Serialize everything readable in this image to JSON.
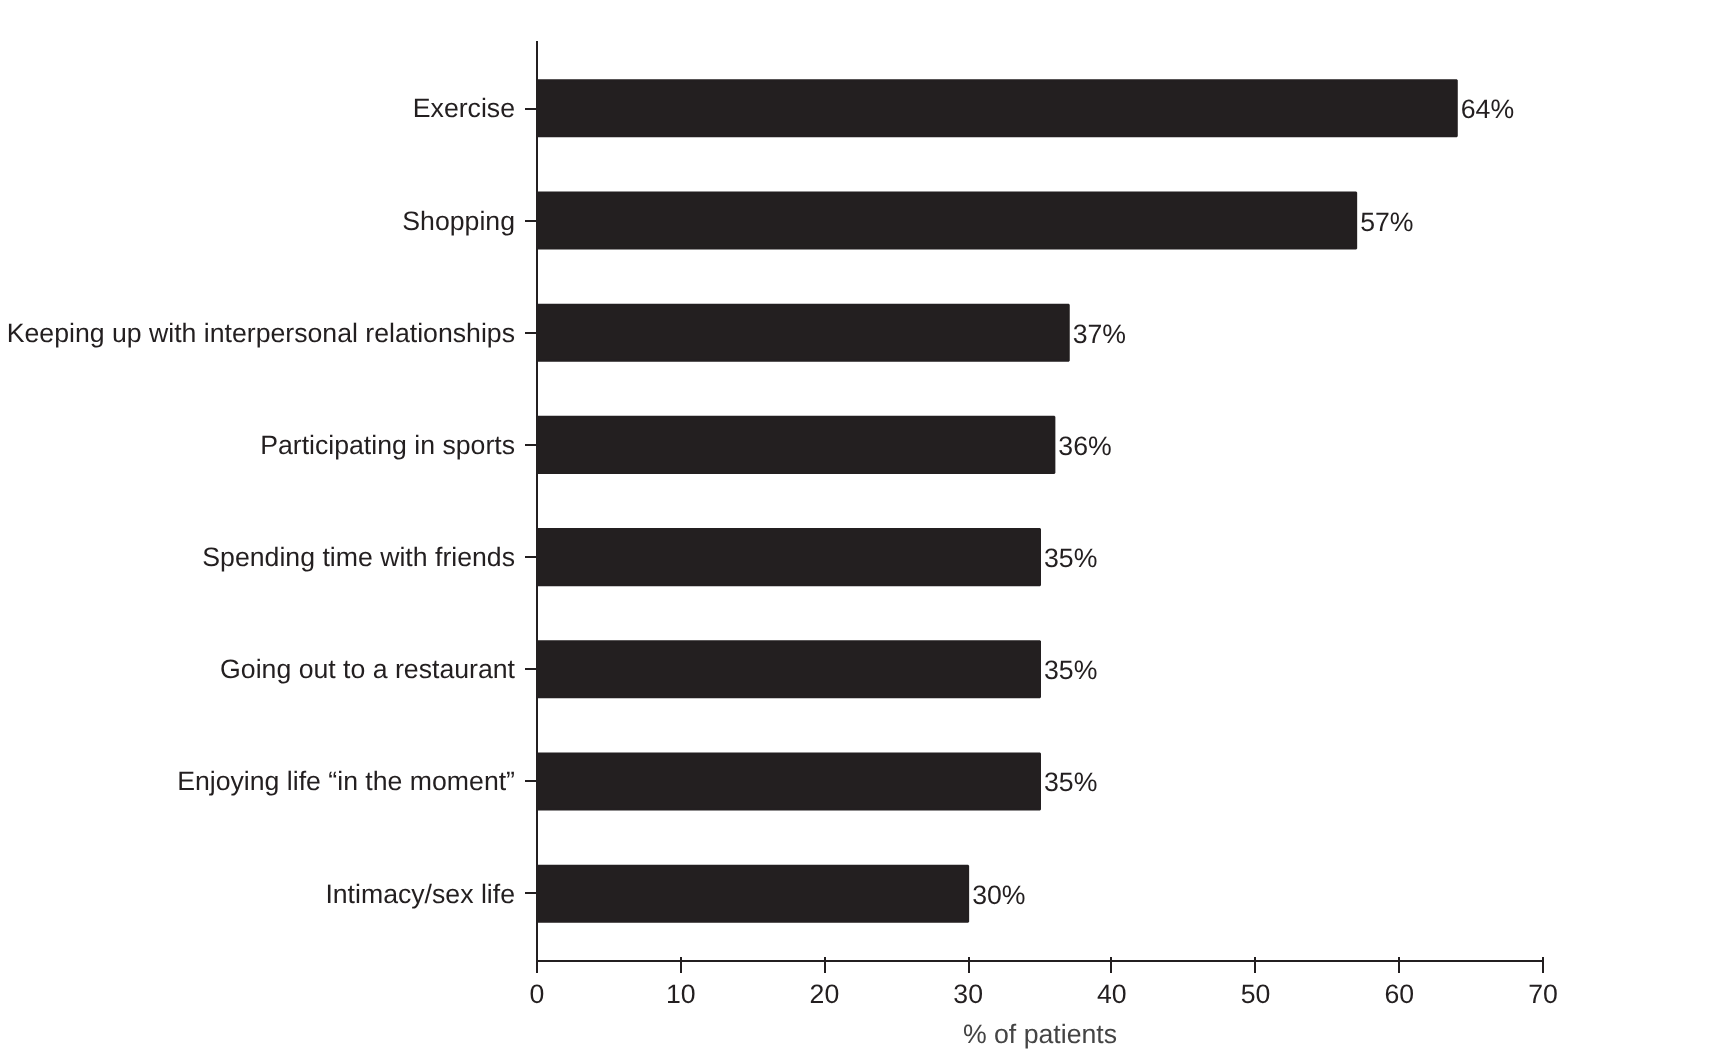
{
  "chart_data": {
    "type": "bar",
    "orientation": "horizontal",
    "xlabel": "% of patients",
    "categories": [
      "Exercise",
      "Shopping",
      "Keeping up with interpersonal relationships",
      "Participating in sports",
      "Spending time with friends",
      "Going out to a restaurant",
      "Enjoying life “in the moment”",
      "Intimacy/sex life"
    ],
    "values": [
      64,
      57,
      37,
      36,
      35,
      35,
      35,
      30
    ],
    "value_labels": [
      "64%",
      "57%",
      "37%",
      "36%",
      "35%",
      "35%",
      "35%",
      "30%"
    ],
    "color": "#231f20",
    "xlim": [
      0,
      70
    ],
    "xticks": [
      0,
      10,
      20,
      30,
      40,
      50,
      60,
      70
    ],
    "grid": false
  }
}
